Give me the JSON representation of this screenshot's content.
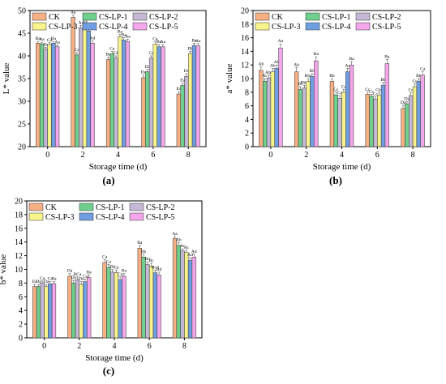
{
  "chart_data": [
    {
      "panel_label": "(a)",
      "type": "bar",
      "ylabel": "L* value",
      "xlabel": "Storage time (d)",
      "ylim": [
        20,
        50
      ],
      "yticks": [
        20,
        25,
        30,
        35,
        40,
        45,
        50
      ],
      "categories": [
        "0",
        "2",
        "4",
        "6",
        "8"
      ],
      "series": [
        {
          "name": "CK",
          "values": [
            42.8,
            48.5,
            39.2,
            35.2,
            31.6
          ],
          "errors": [
            0.4,
            0.5,
            0.5,
            0.6,
            0.5
          ],
          "labels": [
            "Ba",
            "Aa",
            "Ba",
            "Da",
            "Ea"
          ]
        },
        {
          "name": "CS-LP-1",
          "values": [
            42.6,
            40.2,
            40.5,
            36.5,
            33.5
          ],
          "errors": [
            0.4,
            0.5,
            0.5,
            0.5,
            0.5
          ],
          "labels": [
            "Aa",
            "Ca",
            "Ca",
            "Da",
            "Ea"
          ]
        },
        {
          "name": "CS-LP-2",
          "values": [
            41.5,
            46.2,
            39.5,
            39.5,
            35.5
          ],
          "errors": [
            0.4,
            0.5,
            0.5,
            0.5,
            0.6
          ],
          "labels": [
            "Ba",
            "Aa",
            "Cb",
            "Ca",
            "Dc"
          ]
        },
        {
          "name": "CS-LP-3",
          "values": [
            42.5,
            46.5,
            44.2,
            42.6,
            40.5
          ],
          "errors": [
            0.4,
            0.5,
            0.5,
            0.5,
            0.5
          ],
          "labels": [
            "Ca",
            "Aa",
            "Ba",
            "Ca",
            "Db"
          ]
        },
        {
          "name": "CS-LP-4",
          "values": [
            42.8,
            45.5,
            43.5,
            42.0,
            42.3
          ],
          "errors": [
            0.4,
            0.5,
            0.5,
            0.5,
            0.5
          ],
          "labels": [
            "Ba",
            "Ac",
            "Ba",
            "Ba",
            "Ba"
          ]
        },
        {
          "name": "CS-LP-5",
          "values": [
            42.0,
            42.8,
            43.2,
            42.0,
            42.2
          ],
          "errors": [
            0.4,
            0.5,
            0.5,
            0.5,
            0.5
          ],
          "labels": [
            "Aa",
            "Ad",
            "Aa",
            "Aa",
            "Aa"
          ]
        }
      ]
    },
    {
      "panel_label": "(b)",
      "type": "bar",
      "ylabel": "a* value",
      "xlabel": "Storage time (d)",
      "ylim": [
        0,
        20
      ],
      "yticks": [
        0,
        2,
        4,
        6,
        8,
        10,
        12,
        14,
        16,
        18,
        20
      ],
      "categories": [
        "0",
        "2",
        "4",
        "6",
        "8"
      ],
      "series": [
        {
          "name": "CK",
          "values": [
            11.2,
            11.0,
            9.6,
            7.7,
            5.6
          ],
          "errors": [
            0.5,
            0.6,
            0.4,
            0.3,
            0.5
          ],
          "labels": [
            "Ab",
            "Ab",
            "Bb",
            "Cc",
            "Da"
          ]
        },
        {
          "name": "CS-LP-1",
          "values": [
            9.6,
            8.4,
            7.6,
            7.4,
            6.3
          ],
          "errors": [
            0.4,
            0.4,
            0.4,
            0.3,
            0.3
          ],
          "labels": [
            "Ac",
            "Bc",
            "Cc",
            "Cc",
            "Da"
          ]
        },
        {
          "name": "CS-LP-2",
          "values": [
            10.1,
            8.6,
            7.1,
            7.0,
            7.5
          ],
          "errors": [
            0.4,
            0.4,
            0.4,
            0.3,
            0.4
          ],
          "labels": [
            "Abc",
            "Bbc",
            "Cc",
            "Cc",
            "Cd"
          ]
        },
        {
          "name": "CS-LP-3",
          "values": [
            11.0,
            9.6,
            8.0,
            7.6,
            8.8
          ],
          "errors": [
            0.5,
            0.4,
            0.4,
            0.3,
            0.4
          ],
          "labels": [
            "Ab",
            "Bbc",
            "Cc",
            "Cbc",
            "Cc"
          ]
        },
        {
          "name": "CS-LP-4",
          "values": [
            11.5,
            10.3,
            11.0,
            9.0,
            9.6
          ],
          "errors": [
            0.5,
            0.4,
            0.5,
            0.4,
            0.4
          ],
          "labels": [
            "Ab",
            "Bb",
            "Aa",
            "Bb",
            "Bb"
          ]
        },
        {
          "name": "CS-LP-5",
          "values": [
            14.5,
            12.6,
            12.0,
            12.2,
            10.5
          ],
          "errors": [
            0.6,
            0.6,
            0.5,
            0.6,
            0.5
          ],
          "labels": [
            "Aa",
            "Ba",
            "Ba",
            "Ba",
            "Ca"
          ]
        }
      ]
    },
    {
      "panel_label": "(c)",
      "type": "bar",
      "ylabel": "b* value",
      "xlabel": "Storage time (d)",
      "ylim": [
        0,
        20
      ],
      "yticks": [
        0,
        2,
        4,
        6,
        8,
        10,
        12,
        14,
        16,
        18,
        20
      ],
      "categories": [
        "0",
        "2",
        "4",
        "6",
        "8"
      ],
      "series": [
        {
          "name": "CK",
          "values": [
            7.5,
            9.0,
            11.0,
            13.1,
            14.5
          ],
          "errors": [
            0.3,
            0.4,
            0.4,
            0.4,
            0.3
          ],
          "labels": [
            "Ea",
            "Da",
            "Ca",
            "Ba",
            "Aa"
          ]
        },
        {
          "name": "CS-LP-1",
          "values": [
            7.5,
            8.0,
            10.3,
            11.8,
            13.5
          ],
          "errors": [
            0.3,
            0.4,
            0.4,
            0.4,
            0.4
          ],
          "labels": [
            "Da",
            "Da",
            "Ca",
            "Bb",
            "Ab"
          ]
        },
        {
          "name": "CS-LP-2",
          "values": [
            8.0,
            8.5,
            9.6,
            10.7,
            12.7
          ],
          "errors": [
            0.3,
            0.4,
            0.4,
            0.4,
            0.3
          ],
          "labels": [
            "Ca",
            "BCa",
            "Ba",
            "Bc",
            "Ac"
          ]
        },
        {
          "name": "CS-LP-3",
          "values": [
            7.5,
            7.8,
            9.5,
            10.5,
            12.5
          ],
          "errors": [
            0.3,
            0.4,
            0.4,
            0.4,
            0.3
          ],
          "labels": [
            "Da",
            "Da",
            "Ca",
            "Bc",
            "Ac"
          ]
        },
        {
          "name": "CS-LP-4",
          "values": [
            7.9,
            8.2,
            8.5,
            9.5,
            11.3
          ],
          "errors": [
            0.3,
            0.4,
            0.4,
            0.4,
            0.4
          ],
          "labels": [
            "Ca",
            "Ca",
            "Ca",
            "Bcd",
            "Ad"
          ]
        },
        {
          "name": "CS-LP-5",
          "values": [
            7.9,
            8.8,
            9.0,
            9.2,
            11.8
          ],
          "errors": [
            0.3,
            0.4,
            0.4,
            0.4,
            0.4
          ],
          "labels": [
            "Ba",
            "Ba",
            "Ba",
            "Bd",
            "Ad"
          ]
        }
      ]
    }
  ],
  "legend": {
    "placement": "top-left",
    "entries": [
      "CK",
      "CS-LP-1",
      "CS-LP-2",
      "CS-LP-3",
      "CS-LP-4",
      "CS-LP-5"
    ]
  },
  "colors": {
    "CK": "#f6b083",
    "CS-LP-1": "#6fd08d",
    "CS-LP-2": "#c4b8d6",
    "CS-LP-3": "#f8f48c",
    "CS-LP-4": "#6f9fe2",
    "CS-LP-5": "#f3a6ea"
  }
}
